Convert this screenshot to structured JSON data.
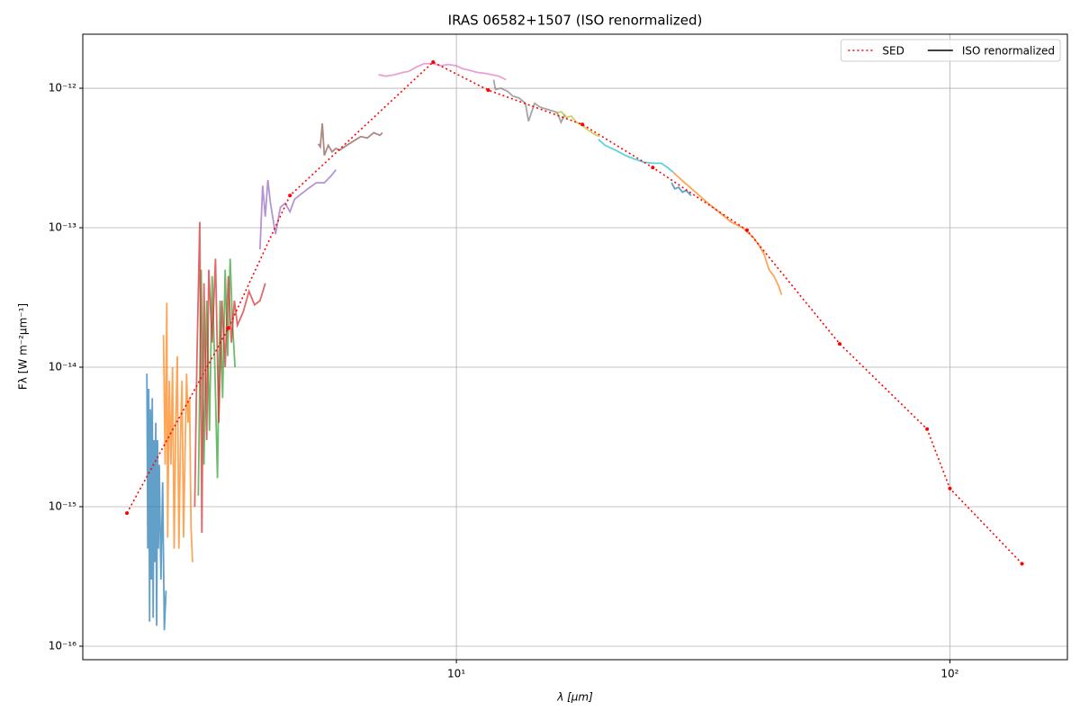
{
  "chart_data": {
    "type": "line",
    "title": "IRAS 06582+1507 (ISO renormalized)",
    "xlabel": "λ [μm]",
    "ylabel": "Fλ [W m⁻²μm⁻¹]",
    "xscale": "log",
    "yscale": "log",
    "xlim": [
      1.75,
      173
    ],
    "ylim": [
      8e-17,
      2.44e-12
    ],
    "xticks": [
      {
        "value": 10,
        "label": "10¹"
      },
      {
        "value": 100,
        "label": "10²"
      }
    ],
    "yticks": [
      {
        "value": 1e-16,
        "label": "10⁻¹⁶"
      },
      {
        "value": 1e-15,
        "label": "10⁻¹⁵"
      },
      {
        "value": 1e-14,
        "label": "10⁻¹⁴"
      },
      {
        "value": 1e-13,
        "label": "10⁻¹³"
      },
      {
        "value": 1e-12,
        "label": "10⁻¹²"
      }
    ],
    "grid": true,
    "legend_loc": "upper right",
    "series": [
      {
        "name": "SED",
        "color": "#ff0000",
        "linestyle": "dotted",
        "marker": true,
        "x": [
          2.15,
          3.45,
          4.6,
          8.97,
          11.6,
          18.0,
          25.0,
          38.8,
          59.8,
          89.9,
          100,
          140
        ],
        "values": [
          9e-16,
          1.9e-14,
          1.7e-13,
          1.54e-12,
          9.7e-13,
          5.5e-13,
          2.7e-13,
          9.6e-14,
          1.47e-14,
          3.6e-15,
          1.35e-15,
          3.9e-16
        ]
      },
      {
        "name": "ISO renormalized",
        "color": "#000000",
        "linestyle": "solid",
        "marker": false,
        "x": [],
        "values": []
      }
    ],
    "spectra": [
      {
        "color": "#1f77b4",
        "x": [
          2.36,
          2.37,
          2.38,
          2.39,
          2.4,
          2.41,
          2.42,
          2.43,
          2.44,
          2.45,
          2.46,
          2.47,
          2.48,
          2.49,
          2.5,
          2.52,
          2.54,
          2.56,
          2.58
        ],
        "values": [
          9e-15,
          5e-16,
          7e-15,
          1.5e-16,
          5e-15,
          3e-16,
          6e-15,
          1.6e-16,
          3e-15,
          4e-16,
          4e-15,
          1.4e-16,
          3e-15,
          5e-16,
          2e-15,
          3e-16,
          1.5e-15,
          1.3e-16,
          2.5e-16
        ]
      },
      {
        "color": "#ff7f0e",
        "x": [
          2.55,
          2.57,
          2.59,
          2.6,
          2.62,
          2.64,
          2.66,
          2.68,
          2.7,
          2.72,
          2.74,
          2.76,
          2.78,
          2.8,
          2.82,
          2.84,
          2.86,
          2.88,
          2.9,
          2.92
        ],
        "values": [
          1.7e-14,
          2e-15,
          2.9e-14,
          6e-16,
          8e-15,
          2e-15,
          1e-14,
          5e-16,
          4e-15,
          1.2e-14,
          5e-16,
          3e-15,
          8e-15,
          6e-16,
          2.5e-15,
          9e-15,
          4e-15,
          6e-15,
          7e-16,
          4e-16
        ]
      },
      {
        "color": "#2ca02c",
        "x": [
          3.0,
          3.04,
          3.08,
          3.12,
          3.16,
          3.2,
          3.24,
          3.28,
          3.32,
          3.36,
          3.4,
          3.44,
          3.48,
          3.52,
          3.56
        ],
        "values": [
          1.2e-15,
          5e-14,
          2e-15,
          3e-14,
          3.5e-15,
          4.5e-14,
          1e-14,
          1.6e-15,
          3e-14,
          6e-15,
          5e-14,
          1.2e-14,
          6e-14,
          2e-14,
          1e-14
        ]
      },
      {
        "color": "#d62728",
        "x": [
          2.95,
          2.98,
          3.02,
          3.05,
          3.08,
          3.12,
          3.15,
          3.2,
          3.25,
          3.3,
          3.35,
          3.4,
          3.45,
          3.5,
          3.55,
          3.6,
          3.7,
          3.8,
          3.9,
          4.0,
          4.1
        ],
        "values": [
          1e-15,
          1.1e-14,
          1.1e-13,
          6.5e-16,
          4e-14,
          3e-15,
          5e-14,
          1.5e-14,
          6e-14,
          4e-15,
          3e-14,
          1e-14,
          4.5e-14,
          1.5e-14,
          3e-14,
          2e-14,
          2.5e-14,
          3.5e-14,
          2.8e-14,
          3e-14,
          4e-14
        ]
      },
      {
        "color": "#9467bd",
        "x": [
          4.0,
          4.05,
          4.1,
          4.15,
          4.2,
          4.3,
          4.4,
          4.5,
          4.6,
          4.7,
          4.8,
          5.0,
          5.2,
          5.4,
          5.6,
          5.7
        ],
        "values": [
          7e-14,
          2e-13,
          1.2e-13,
          2.2e-13,
          1.5e-13,
          9e-14,
          1.4e-13,
          1.5e-13,
          1.3e-13,
          1.6e-13,
          1.7e-13,
          1.9e-13,
          2.1e-13,
          2.1e-13,
          2.4e-13,
          2.6e-13
        ]
      },
      {
        "color": "#8c564b",
        "x": [
          5.25,
          5.3,
          5.35,
          5.4,
          5.5,
          5.6,
          5.7,
          5.8,
          6.0,
          6.2,
          6.4,
          6.6,
          6.8,
          7.0,
          7.08
        ],
        "values": [
          4e-13,
          3.8e-13,
          5.6e-13,
          3.3e-13,
          3.9e-13,
          3.5e-13,
          3.7e-13,
          3.6e-13,
          3.9e-13,
          4.2e-13,
          4.5e-13,
          4.4e-13,
          4.8e-13,
          4.6e-13,
          4.8e-13
        ]
      },
      {
        "color": "#e377c2",
        "x": [
          6.95,
          7.2,
          7.5,
          7.8,
          8.0,
          8.3,
          8.6,
          9.0,
          9.3,
          9.6,
          10,
          10.3,
          10.6,
          11,
          11.4,
          11.8,
          12.2,
          12.6
        ],
        "values": [
          1.25e-12,
          1.22e-12,
          1.25e-12,
          1.3e-12,
          1.32e-12,
          1.42e-12,
          1.5e-12,
          1.5e-12,
          1.45e-12,
          1.48e-12,
          1.45e-12,
          1.38e-12,
          1.35e-12,
          1.3e-12,
          1.28e-12,
          1.25e-12,
          1.22e-12,
          1.15e-12
        ]
      },
      {
        "color": "#7f7f7f",
        "x": [
          11.9,
          12.0,
          12.3,
          12.7,
          13.0,
          13.4,
          13.8,
          14.0,
          14.4,
          14.8,
          15.2,
          15.6,
          16.0,
          16.3,
          16.6
        ],
        "values": [
          1.15e-12,
          9.8e-13,
          1e-12,
          9.5e-13,
          8.8e-13,
          8.5e-13,
          7.8e-13,
          5.8e-13,
          7.8e-13,
          7.3e-13,
          7.1e-13,
          6.9e-13,
          6.7e-13,
          5.7e-13,
          6.5e-13
        ]
      },
      {
        "color": "#bcbd22",
        "x": [
          15.9,
          16.3,
          16.7,
          17.1,
          17.5,
          18,
          18.5,
          19,
          19.5
        ],
        "values": [
          6.6e-13,
          6.8e-13,
          6.2e-13,
          6.3e-13,
          5.7e-13,
          5.4e-13,
          5e-13,
          4.7e-13,
          4.5e-13
        ]
      },
      {
        "color": "#17becf",
        "x": [
          19.4,
          20,
          21,
          22,
          23,
          24,
          25,
          26,
          26.8,
          27.5
        ],
        "values": [
          4.3e-13,
          3.9e-13,
          3.6e-13,
          3.3e-13,
          3.1e-13,
          2.95e-13,
          2.9e-13,
          2.9e-13,
          2.7e-13,
          2.5e-13
        ]
      },
      {
        "color": "#1f77b4",
        "x": [
          27.3,
          27.7,
          28.2,
          28.7,
          29.2,
          29.9
        ],
        "values": [
          2.1e-13,
          1.9e-13,
          1.95e-13,
          1.8e-13,
          1.85e-13,
          1.7e-13
        ]
      },
      {
        "color": "#ff7f0e",
        "x": [
          27.5,
          29,
          30.5,
          32,
          34,
          36,
          38,
          40,
          41,
          42,
          43,
          44,
          45,
          45.6
        ],
        "values": [
          2.5e-13,
          2.1e-13,
          1.8e-13,
          1.55e-13,
          1.3e-13,
          1.1e-13,
          1e-13,
          8.5e-14,
          7.5e-14,
          6.5e-14,
          5e-14,
          4.5e-14,
          3.8e-14,
          3.3e-14
        ]
      }
    ]
  }
}
